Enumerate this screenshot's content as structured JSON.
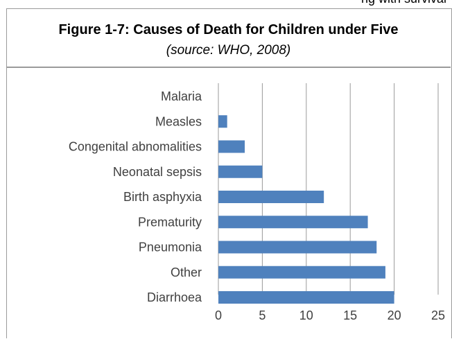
{
  "top_clip_text": "ng with survival",
  "caption": {
    "title": "Figure 1-7: Causes of Death for Children under Five",
    "source": "(source: WHO, 2008)"
  },
  "chart_data": {
    "type": "bar",
    "orientation": "horizontal",
    "title": "",
    "xlabel": "",
    "ylabel": "",
    "categories": [
      "Malaria",
      "Measles",
      "Congenital abnomalities",
      "Neonatal sepsis",
      "Birth asphyxia",
      "Prematurity",
      "Pneumonia",
      "Other",
      "Diarrhoea"
    ],
    "values": [
      0,
      1,
      3,
      5,
      12,
      17,
      18,
      19,
      20
    ],
    "xlim": [
      0,
      25
    ],
    "xticks": [
      0,
      5,
      10,
      15,
      20,
      25
    ],
    "grid": "vertical",
    "legend": "none",
    "bar_color": "#4f81bd",
    "grid_color": "#9a9a9a",
    "tick_label_color": "#404040"
  }
}
